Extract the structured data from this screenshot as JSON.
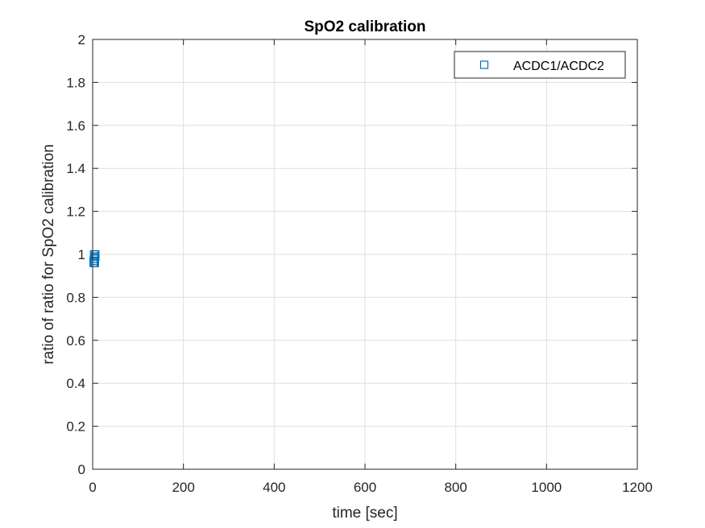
{
  "chart_data": {
    "type": "scatter",
    "title": "SpO2 calibration",
    "xlabel": "time [sec]",
    "ylabel": "ratio of ratio for SpO2 calibration",
    "xlim": [
      0,
      1200
    ],
    "ylim": [
      0,
      2
    ],
    "xticks": [
      0,
      200,
      400,
      600,
      800,
      1000,
      1200
    ],
    "yticks": [
      0,
      0.2,
      0.4,
      0.6,
      0.8,
      1,
      1.2,
      1.4,
      1.6,
      1.8,
      2
    ],
    "xtick_labels": [
      "0",
      "200",
      "400",
      "600",
      "800",
      "1000",
      "1200"
    ],
    "ytick_labels": [
      "0",
      "0.2",
      "0.4",
      "0.6",
      "0.8",
      "1",
      "1.2",
      "1.4",
      "1.6",
      "1.8",
      "2"
    ],
    "grid": true,
    "legend_position": "top-right",
    "series": [
      {
        "name": "ACDC1/ACDC2",
        "marker": "square",
        "color": "#0072BD",
        "x": [
          2,
          3,
          4,
          5,
          6,
          3,
          5,
          2,
          4,
          6,
          3,
          5
        ],
        "y": [
          0.97,
          0.98,
          0.96,
          0.99,
          1.0,
          0.97,
          0.98,
          0.96,
          0.97,
          0.99,
          1.0,
          0.96
        ]
      }
    ]
  }
}
